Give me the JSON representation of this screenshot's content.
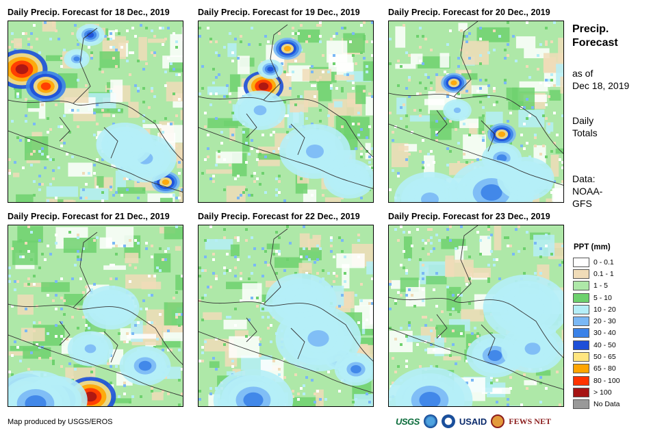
{
  "panels": [
    {
      "title": "Daily Precip. Forecast for 18 Dec., 2019"
    },
    {
      "title": "Daily Precip. Forecast for 19 Dec., 2019"
    },
    {
      "title": "Daily Precip. Forecast for 20 Dec., 2019"
    },
    {
      "title": "Daily Precip. Forecast for 21 Dec., 2019"
    },
    {
      "title": "Daily Precip. Forecast for 22 Dec., 2019"
    },
    {
      "title": "Daily Precip. Forecast for 23 Dec., 2019"
    }
  ],
  "side": {
    "title_line1": "Precip.",
    "title_line2": "Forecast",
    "asof_line1": "as of",
    "asof_line2": "Dec 18, 2019",
    "daily_line1": "Daily",
    "daily_line2": "Totals",
    "data_line1": "Data:",
    "data_line2": "NOAA-",
    "data_line3": "GFS"
  },
  "legend": {
    "title": "PPT (mm)",
    "items": [
      {
        "label": "0 - 0.1",
        "color": "#ffffff"
      },
      {
        "label": "0.1 - 1",
        "color": "#f0dcb8"
      },
      {
        "label": "1 - 5",
        "color": "#aee8a8"
      },
      {
        "label": "5 - 10",
        "color": "#6ed16e"
      },
      {
        "label": "10 - 20",
        "color": "#b5eef7"
      },
      {
        "label": "20 - 30",
        "color": "#7ab8f5"
      },
      {
        "label": "30 - 40",
        "color": "#3b82e8"
      },
      {
        "label": "40 - 50",
        "color": "#1d4fd8"
      },
      {
        "label": "50 - 65",
        "color": "#ffe680"
      },
      {
        "label": "65 - 80",
        "color": "#ffa500"
      },
      {
        "label": "80 - 100",
        "color": "#ff3300"
      },
      {
        "label": "> 100",
        "color": "#a61414"
      },
      {
        "label": "No Data",
        "color": "#999999"
      }
    ]
  },
  "credit": "Map produced by USGS/EROS",
  "logos": {
    "usgs": "USGS",
    "usaid": "USAID",
    "fews": "FEWS NET"
  }
}
